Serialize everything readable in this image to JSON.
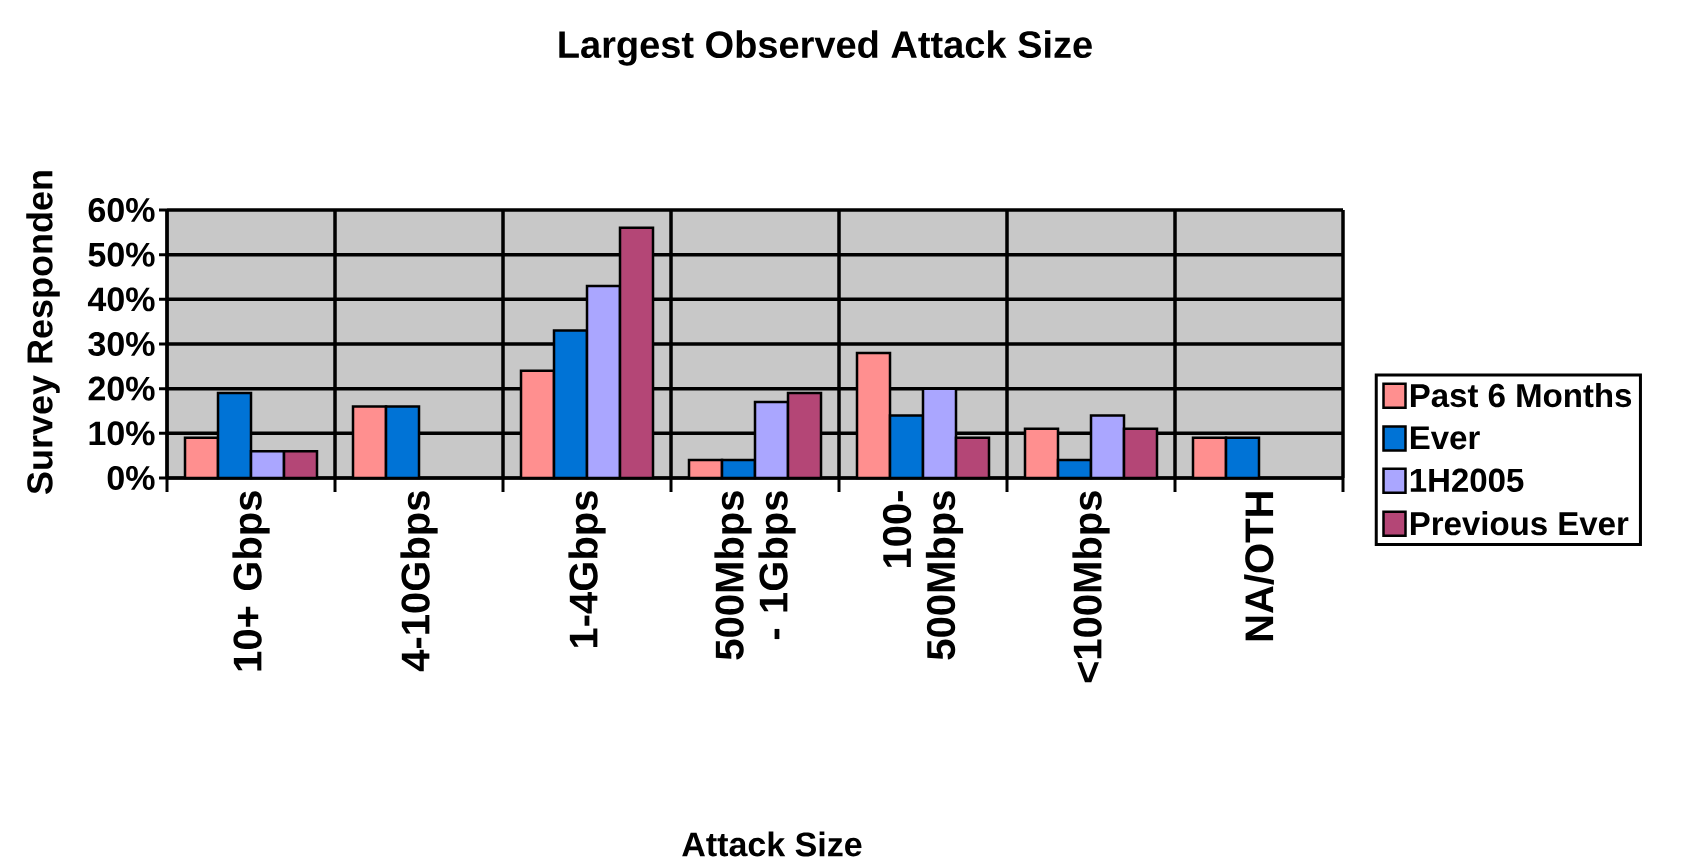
{
  "chart_data": {
    "type": "bar",
    "title": "Largest Observed Attack Size",
    "xlabel": "Attack Size",
    "ylabel": "Survey Responden",
    "categories": [
      "10+  Gbps",
      "4-10Gbps",
      "1-4Gbps",
      "500Mbps - 1Gbps",
      "100-500Mbps",
      "<100Mbps",
      "NA/OTH"
    ],
    "series": [
      {
        "name": "Past 6 Months",
        "color": "#ff8f8f",
        "values": [
          9,
          16,
          24,
          4,
          28,
          11,
          9
        ]
      },
      {
        "name": "Ever",
        "color": "#0073d6",
        "values": [
          19,
          16,
          33,
          4,
          14,
          4,
          9
        ]
      },
      {
        "name": "1H2005",
        "color": "#aaa6ff",
        "values": [
          6,
          null,
          43,
          17,
          20,
          14,
          null
        ]
      },
      {
        "name": "Previous Ever",
        "color": "#b44676",
        "values": [
          6,
          null,
          56,
          19,
          9,
          11,
          null
        ]
      }
    ],
    "ylim": [
      0,
      60
    ],
    "yticks": [
      {
        "value": 0,
        "label": "0%"
      },
      {
        "value": 10,
        "label": "10%"
      },
      {
        "value": 20,
        "label": "20%"
      },
      {
        "value": 30,
        "label": "30%"
      },
      {
        "value": 40,
        "label": "40%"
      },
      {
        "value": 50,
        "label": "50%"
      },
      {
        "value": 60,
        "label": "60%"
      }
    ],
    "grid": true,
    "legend": "right"
  }
}
